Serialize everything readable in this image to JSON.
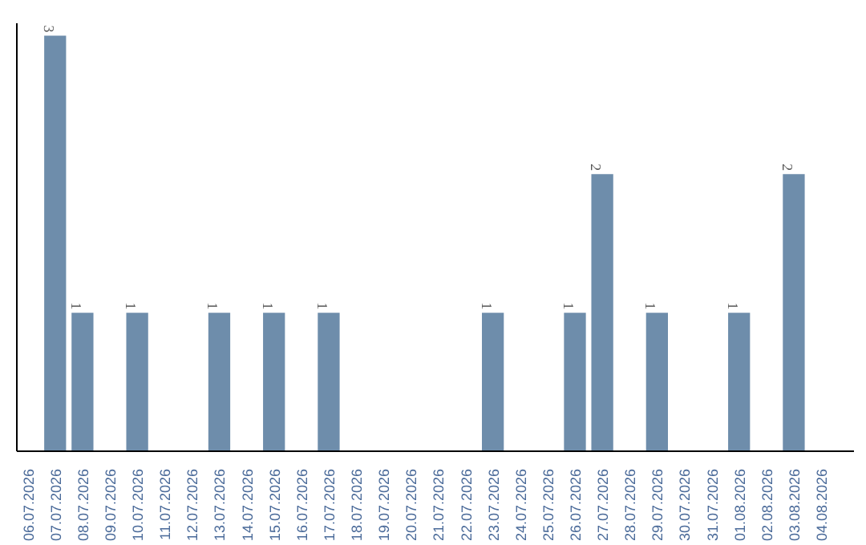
{
  "chart_data": {
    "type": "bar",
    "color": "#6e8dab",
    "categories": [
      "06.07.2026",
      "07.07.2026",
      "08.07.2026",
      "09.07.2026",
      "10.07.2026",
      "11.07.2026",
      "12.07.2026",
      "13.07.2026",
      "14.07.2026",
      "15.07.2026",
      "16.07.2026",
      "17.07.2026",
      "18.07.2026",
      "19.07.2026",
      "20.07.2026",
      "21.07.2026",
      "22.07.2026",
      "23.07.2026",
      "24.07.2026",
      "25.07.2026",
      "26.07.2026",
      "27.07.2026",
      "28.07.2026",
      "29.07.2026",
      "30.07.2026",
      "31.07.2026",
      "01.08.2026",
      "02.08.2026",
      "03.08.2026",
      "04.08.2026"
    ],
    "values": [
      0,
      3,
      1,
      0,
      1,
      0,
      0,
      1,
      0,
      1,
      0,
      1,
      0,
      0,
      0,
      0,
      0,
      1,
      0,
      0,
      1,
      2,
      0,
      1,
      0,
      0,
      1,
      0,
      2,
      0
    ],
    "value_labels": [
      null,
      "3",
      "1",
      null,
      "1",
      null,
      null,
      "1",
      null,
      "1",
      null,
      "1",
      null,
      null,
      null,
      null,
      null,
      "1",
      null,
      null,
      "1",
      "2",
      null,
      "1",
      null,
      null,
      "1",
      null,
      "2",
      null
    ],
    "grid": false
  }
}
